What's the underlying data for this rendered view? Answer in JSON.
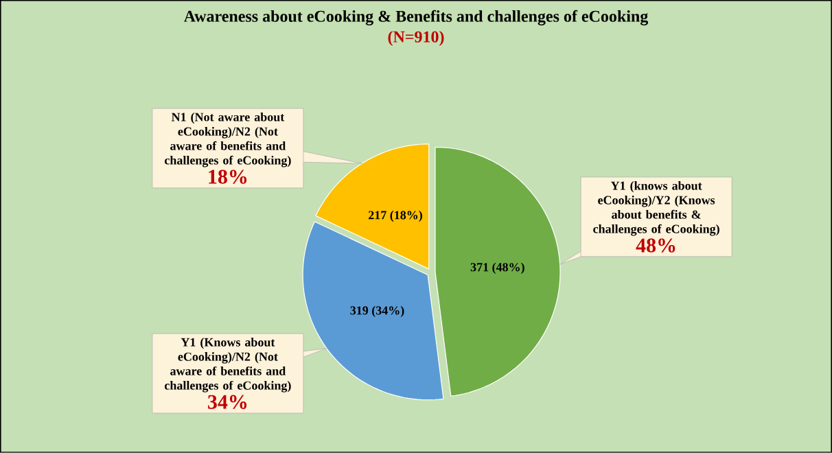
{
  "chart_data": {
    "type": "pie",
    "title": "Awareness about eCooking & Benefits and challenges of eCooking",
    "subtitle": "(N=910)",
    "categories": [
      "Y1 (knows about eCooking)/Y2 (Knows about benefits & challenges of eCooking)",
      "Y1 (Knows about eCooking)/N2 (Not aware of benefits and challenges of eCooking)",
      "N1 (Not aware about eCooking)/N2 (Not aware of benefits and challenges of eCooking)"
    ],
    "values": [
      48,
      34,
      18
    ],
    "colors": [
      "#70ad47",
      "#5b9bd5",
      "#ffc000"
    ],
    "value_labels": [
      "371 (48%)",
      "319 (34%)",
      "217 (18%)"
    ],
    "annotations": [
      "48%",
      "34%",
      "18%"
    ]
  }
}
